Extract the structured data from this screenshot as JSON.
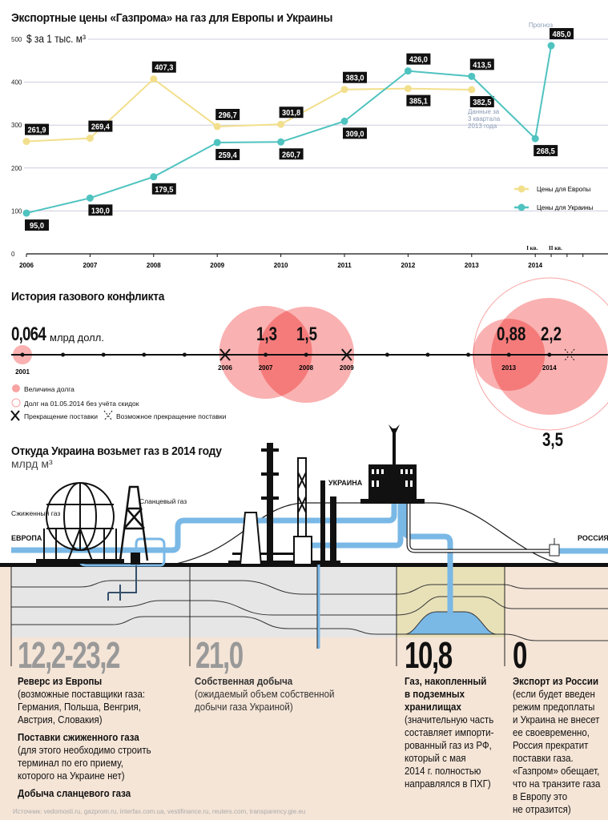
{
  "chart_data": {
    "type": "line",
    "title": "Экспортные цены «Газпрома» на газ для Европы и Украины",
    "ylabel": "$ за 1 тыс. м³",
    "ylim": [
      0,
      500
    ],
    "yticks": [
      "0",
      "100",
      "200",
      "300",
      "400",
      "500"
    ],
    "categories": [
      "2006",
      "2007",
      "2008",
      "2009",
      "2010",
      "2011",
      "2012",
      "2013",
      "2014"
    ],
    "quarter_labels": [
      "I кв.",
      "II кв."
    ],
    "series": [
      {
        "name": "Цены для Европы",
        "color": "#f2df8c",
        "x": [
          2006,
          2007,
          2008,
          2009,
          2010,
          2011,
          2012,
          2013
        ],
        "values": [
          261.9,
          269.4,
          407.3,
          296.7,
          301.8,
          383.0,
          385.1,
          382.5
        ],
        "labels": [
          "261,9",
          "269,4",
          "407,3",
          "296,7",
          "301,8",
          "383,0",
          "385,1",
          "382,5"
        ]
      },
      {
        "name": "Цены для Украины",
        "color": "#4fc3c0",
        "x": [
          2006,
          2007,
          2008,
          2009,
          2010,
          2011,
          2012,
          2013,
          2014,
          2014.25
        ],
        "values": [
          95.0,
          130.0,
          179.5,
          259.4,
          260.7,
          309.0,
          426.0,
          413.5,
          268.5,
          485.0
        ],
        "labels": [
          "95,0",
          "130,0",
          "179,5",
          "259,4",
          "260,7",
          "309,0",
          "426,0",
          "413,5",
          "268,5",
          "485,0"
        ]
      }
    ],
    "annotations": {
      "forecast": "Прогноз",
      "note": [
        "Данные за",
        "3 квартала",
        "2013 года"
      ]
    },
    "legend_placement": "right"
  },
  "conflict": {
    "title": "История газового конфликта",
    "first_value": "0,064",
    "unit": "млрд долл.",
    "years": {
      "2001": "2001",
      "2006": "2006",
      "2007": "2007",
      "2008": "2008",
      "2009": "2009",
      "2013": "2013",
      "2014": "2014"
    },
    "debts": [
      {
        "year": "2001",
        "value": 0.064
      },
      {
        "year": "2007",
        "value": 1.3,
        "label": "1,3"
      },
      {
        "year": "2008",
        "value": 1.5,
        "label": "1,5"
      },
      {
        "year": "2013",
        "value": 0.88,
        "label": "0,88"
      },
      {
        "year": "2014",
        "value": 2.2,
        "label": "2,2"
      }
    ],
    "total_debt": "3,5",
    "legend": [
      "Величина долга",
      "Долг на 01.05.2014 без учёта скидок",
      "Прекращение поставки",
      "Возможное прекращение поставки"
    ],
    "color": "#f9a3a3"
  },
  "sources": {
    "title": "Откуда Украина возьмет газ в 2014 году",
    "unit": "млрд м³",
    "labels": {
      "europe": "ЕВРОПА",
      "russia": "РОССИЯ",
      "ukraine": "УКРАИНА",
      "lng": "Сжиженный газ",
      "shale": "Сланцевый газ"
    },
    "columns": [
      {
        "value": "12,2-23,2",
        "blocks": [
          {
            "title": "Реверс из Европы",
            "lines": [
              "(возможные поставщики газа:",
              "Германия, Польша, Венгрия,",
              "Австрия, Словакия)"
            ]
          },
          {
            "title": "Поставки сжиженного газа",
            "lines": [
              "(для этого необходимо строить",
              "терминал по его приему,",
              "которого на Украине нет)"
            ]
          },
          {
            "title": "Добыча сланцевого газа",
            "lines": []
          }
        ]
      },
      {
        "value": "21,0",
        "blocks": [
          {
            "title": "Собственная добыча",
            "lines": [
              "(ожидаемый объем собственной",
              "добычи газа Украиной)"
            ]
          }
        ]
      },
      {
        "value": "10,8",
        "blocks": [
          {
            "title": "Газ, накопленный в подземных хранилищах",
            "title_lines": [
              "Газ, накопленный",
              "в подземных",
              "хранилищах"
            ],
            "lines": [
              "(значительную часть",
              "составляет импорти-",
              "рованный газ из РФ,",
              "который с мая",
              "2014 г. полностью",
              "направлялся в ПХГ)"
            ]
          }
        ]
      },
      {
        "value": "0",
        "blocks": [
          {
            "title": "Экспорт из России",
            "lines": [
              "(если будет введен",
              "режим предоплаты",
              "и Украина не внесет",
              "ее своевременно,",
              "Россия прекратит",
              "поставки газа.",
              "«Газпром» обещает,",
              "что на транзите газа",
              "в Европу это",
              "не отразится)"
            ]
          }
        ]
      }
    ]
  },
  "source_note": "Источник: vedomosti.ru, gazprom.ru, interfax.com.ua, vestifinance.ru, reuters.com, transparency.gie.eu"
}
